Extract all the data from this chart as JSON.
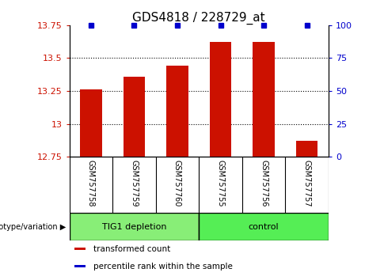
{
  "title": "GDS4818 / 228729_at",
  "samples": [
    "GSM757758",
    "GSM757759",
    "GSM757760",
    "GSM757755",
    "GSM757756",
    "GSM757757"
  ],
  "bar_values": [
    13.26,
    13.36,
    13.44,
    13.62,
    13.62,
    12.87
  ],
  "bar_color": "#cc1100",
  "percentile_color": "#0000cc",
  "ylim_left": [
    12.75,
    13.75
  ],
  "yticks_left": [
    12.75,
    13.0,
    13.25,
    13.5,
    13.75
  ],
  "ytick_labels_left": [
    "12.75",
    "13",
    "13.25",
    "13.5",
    "13.75"
  ],
  "ylim_right": [
    0,
    100
  ],
  "yticks_right": [
    0,
    25,
    50,
    75,
    100
  ],
  "ytick_labels_right": [
    "0",
    "25",
    "50",
    "75",
    "100"
  ],
  "groups": [
    {
      "label": "TIG1 depletion",
      "indices": [
        0,
        1,
        2
      ],
      "color": "#88ee77"
    },
    {
      "label": "control",
      "indices": [
        3,
        4,
        5
      ],
      "color": "#55ee55"
    }
  ],
  "legend_items": [
    {
      "color": "#cc1100",
      "label": "transformed count"
    },
    {
      "color": "#0000cc",
      "label": "percentile rank within the sample"
    }
  ],
  "background_color": "#ffffff",
  "tick_area_color": "#bbbbbb",
  "bar_width": 0.5,
  "title_fontsize": 11
}
